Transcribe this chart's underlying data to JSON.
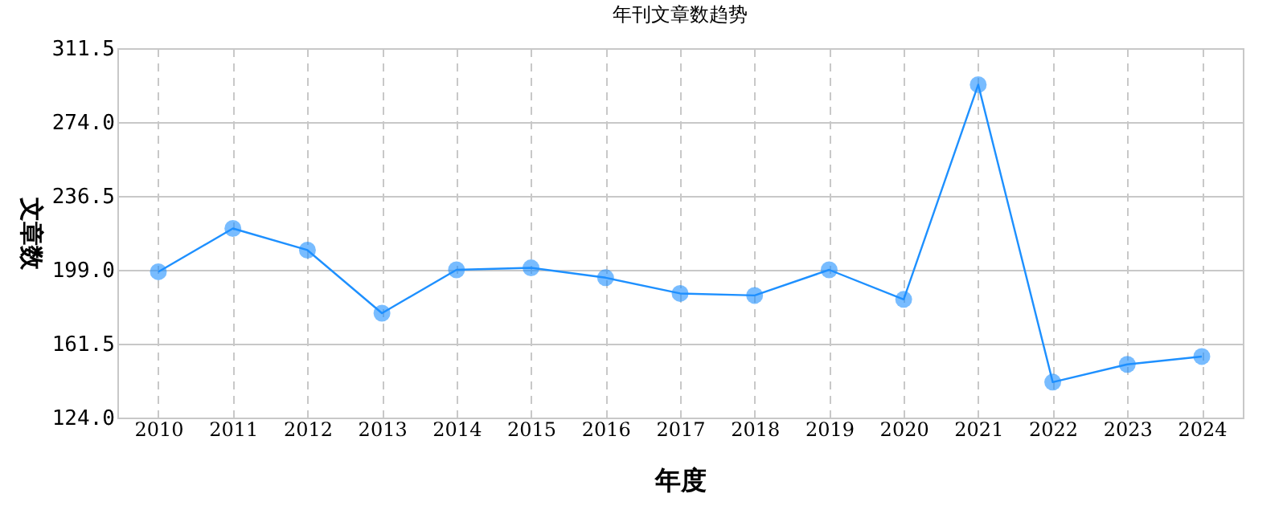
{
  "chart_data": {
    "type": "line",
    "title": "年刊文章数趋势",
    "xlabel": "年度",
    "ylabel": "文章数",
    "categories": [
      "2010",
      "2011",
      "2012",
      "2013",
      "2014",
      "2015",
      "2016",
      "2017",
      "2018",
      "2019",
      "2020",
      "2021",
      "2022",
      "2023",
      "2024"
    ],
    "series": [
      {
        "color": "#1e90ff",
        "values": [
          198,
          220,
          209,
          177,
          199,
          200,
          195,
          187,
          186,
          199,
          184,
          293,
          142,
          151,
          155
        ]
      }
    ],
    "ylim": [
      124,
      311.5
    ],
    "yticks": [
      {
        "value": 124,
        "label": "124.0"
      },
      {
        "value": 161.5,
        "label": "161.5"
      },
      {
        "value": 199,
        "label": "199.0"
      },
      {
        "value": 236.5,
        "label": "236.5"
      },
      {
        "value": 274,
        "label": "274.0"
      },
      {
        "value": 311.5,
        "label": "311.5"
      }
    ],
    "grid": true,
    "marker": "circle",
    "line_style": "solid"
  }
}
